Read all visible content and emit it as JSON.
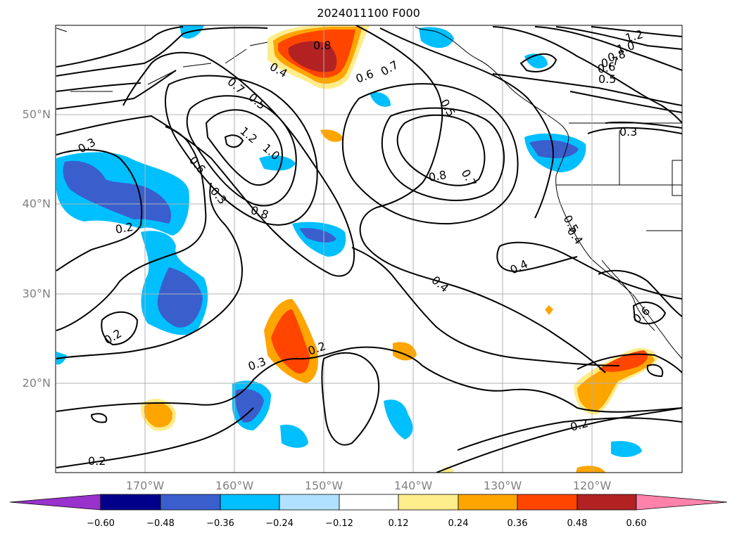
{
  "title": "2024011100 F000",
  "map": {
    "lat_labels": [
      "50°N",
      "40°N",
      "30°N",
      "20°N"
    ],
    "lon_labels": [
      "170°W",
      "160°W",
      "150°W",
      "140°W",
      "130°W",
      "120°W"
    ],
    "contour_labels": [
      "0.8",
      "0.4",
      "0.5",
      "0.7",
      "0.6",
      "0.7",
      "0.5",
      "1.2",
      "1.0",
      "0.8",
      "0.7",
      "0.6",
      "0.5",
      "0.3",
      "1.2",
      "1.0",
      "0.8",
      "0.3",
      "0.6",
      "0.3",
      "0.8",
      "0.7",
      "0.5",
      "0.2",
      "0.4",
      "0.4",
      "0.2",
      "0.3",
      "0.2",
      "0.2",
      "0.4",
      "0.6",
      "0.2"
    ]
  },
  "colorbar": {
    "ticks": [
      "−0.60",
      "−0.48",
      "−0.36",
      "−0.24",
      "−0.12",
      "0.12",
      "0.24",
      "0.36",
      "0.48",
      "0.60"
    ],
    "colors": [
      "#9932cc",
      "#00008b",
      "#3a5fcd",
      "#00bfff",
      "#b0e2ff",
      "#ffffff",
      "#ffec8b",
      "#ffa500",
      "#ff4500",
      "#b22222",
      "#ff82ab"
    ]
  }
}
